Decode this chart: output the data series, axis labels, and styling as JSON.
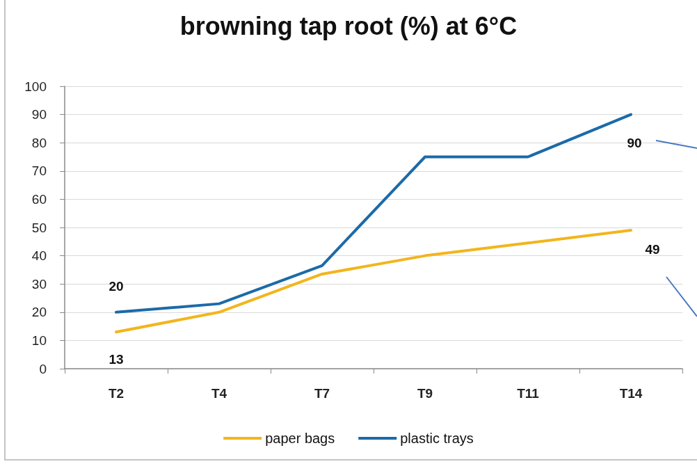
{
  "chart_data": {
    "type": "line",
    "title": "browning tap root (%) at 6°C",
    "categories": [
      "T2",
      "T4",
      "T7",
      "T9",
      "T11",
      "T14"
    ],
    "series": [
      {
        "name": "paper bags",
        "color": "#f2b51c",
        "values": [
          13,
          20,
          33.5,
          40,
          44.5,
          49
        ],
        "value_labels": [
          "13",
          null,
          null,
          null,
          null,
          "49"
        ]
      },
      {
        "name": "plastic trays",
        "color": "#1c6aa8",
        "values": [
          20,
          23,
          36.5,
          75,
          75,
          90
        ],
        "value_labels": [
          "20",
          null,
          null,
          null,
          null,
          "90"
        ]
      }
    ],
    "ylim": [
      0,
      100
    ],
    "yticks": [
      0,
      10,
      20,
      30,
      40,
      50,
      60,
      70,
      80,
      90,
      100
    ],
    "grid": "y",
    "legend": "bottom",
    "marker": "none",
    "line_style": "solid"
  }
}
